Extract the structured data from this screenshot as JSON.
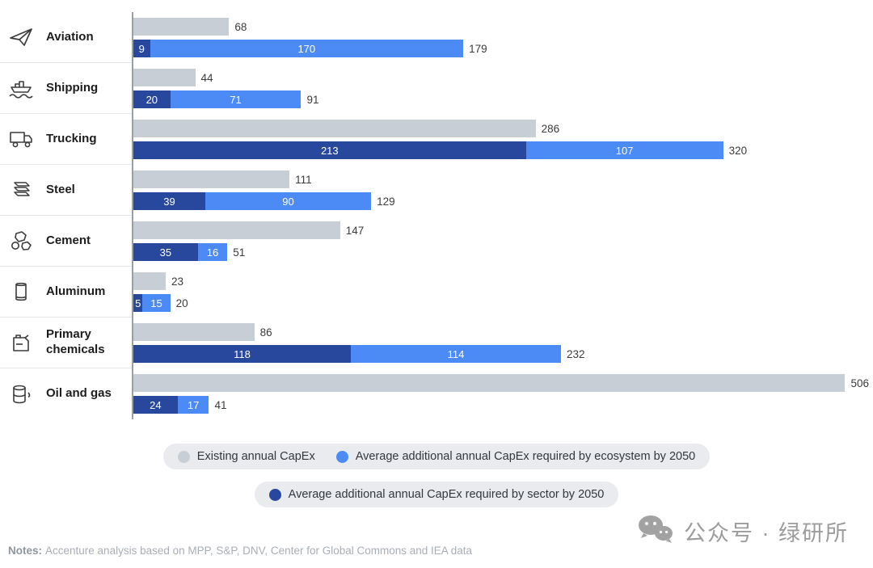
{
  "chart_data": {
    "type": "bar",
    "orientation": "horizontal",
    "title": "",
    "xlabel": "",
    "ylabel": "",
    "legend_position": "bottom",
    "categories": [
      "Aviation",
      "Shipping",
      "Trucking",
      "Steel",
      "Cement",
      "Aluminum",
      "Primary chemicals",
      "Oil and gas"
    ],
    "category_icons": [
      "plane-icon",
      "ship-icon",
      "truck-icon",
      "steel-icon",
      "cement-icon",
      "aluminum-can-icon",
      "chemicals-icon",
      "oil-barrel-icon"
    ],
    "series": [
      {
        "name": "Existing annual CapEx",
        "color": "#c8ced5",
        "values": [
          68,
          44,
          286,
          111,
          147,
          23,
          86,
          506
        ]
      },
      {
        "name": "Average additional annual CapEx required by sector by 2050",
        "color": "#28489e",
        "values": [
          9,
          20,
          213,
          39,
          35,
          5,
          118,
          24
        ]
      },
      {
        "name": "Average additional annual CapEx required by ecosystem by 2050",
        "color": "#4c8bf5",
        "values": [
          170,
          71,
          107,
          90,
          16,
          15,
          114,
          17
        ]
      }
    ],
    "stacked_total_labels": [
      179,
      91,
      320,
      129,
      51,
      20,
      232,
      41
    ]
  },
  "legend": {
    "row1": [
      {
        "swatch_color": "#c8ced5",
        "label": "Existing annual CapEx"
      },
      {
        "swatch_color": "#4c8bf5",
        "label": "Average additional annual CapEx required by ecosystem by 2050"
      }
    ],
    "row2": [
      {
        "swatch_color": "#28489e",
        "label": "Average additional annual CapEx required by sector by 2050"
      }
    ]
  },
  "notes": {
    "prefix": "Notes:",
    "text": "Accenture analysis based on MPP, S&P, DNV, Center for Global Commons and IEA data"
  },
  "watermark": {
    "text": "公众号 · 绿研所"
  }
}
